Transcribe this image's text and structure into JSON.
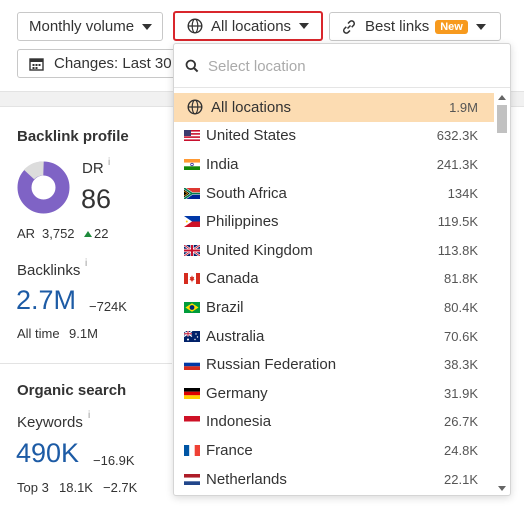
{
  "toolbar": {
    "volume_label": "Monthly volume",
    "locations_label": "All locations",
    "links_label": "Best links",
    "links_badge": "New",
    "changes_label": "Changes: Last 30"
  },
  "backlink_profile": {
    "title": "Backlink profile",
    "dr_label": "DR",
    "dr_value": "86",
    "ar_label": "AR",
    "ar_value": "3,752",
    "ar_change": "22",
    "backlinks_label": "Backlinks",
    "backlinks_value": "2.7M",
    "backlinks_change": "−724K",
    "alltime_label": "All time",
    "alltime_value": "9.1M",
    "info_mark": "i"
  },
  "organic_search": {
    "title": "Organic search",
    "keywords_label": "Keywords",
    "keywords_value": "490K",
    "keywords_change": "−16.9K",
    "top3_label": "Top 3",
    "top3_value": "18.1K",
    "top3_change": "−2.7K"
  },
  "dropdown": {
    "search_placeholder": "Select location",
    "items": [
      {
        "name": "All locations",
        "value": "1.9M",
        "flag": "globe"
      },
      {
        "name": "United States",
        "value": "632.3K",
        "flag": "us"
      },
      {
        "name": "India",
        "value": "241.3K",
        "flag": "in"
      },
      {
        "name": "South Africa",
        "value": "134K",
        "flag": "za"
      },
      {
        "name": "Philippines",
        "value": "119.5K",
        "flag": "ph"
      },
      {
        "name": "United Kingdom",
        "value": "113.8K",
        "flag": "gb"
      },
      {
        "name": "Canada",
        "value": "81.8K",
        "flag": "ca"
      },
      {
        "name": "Brazil",
        "value": "80.4K",
        "flag": "br"
      },
      {
        "name": "Australia",
        "value": "70.6K",
        "flag": "au"
      },
      {
        "name": "Russian Federation",
        "value": "38.3K",
        "flag": "ru"
      },
      {
        "name": "Germany",
        "value": "31.9K",
        "flag": "de"
      },
      {
        "name": "Indonesia",
        "value": "26.7K",
        "flag": "id"
      },
      {
        "name": "France",
        "value": "24.8K",
        "flag": "fr"
      },
      {
        "name": "Netherlands",
        "value": "22.1K",
        "flag": "nl"
      }
    ]
  },
  "colors": {
    "accent_blue": "#1d5ba5",
    "negative": "#d02b2b",
    "positive": "#1e8a3b",
    "selected_row": "#fcdcb2",
    "badge": "#f79a1e",
    "dr_ring": "#7f63c5",
    "focus_border": "#d9262c"
  }
}
